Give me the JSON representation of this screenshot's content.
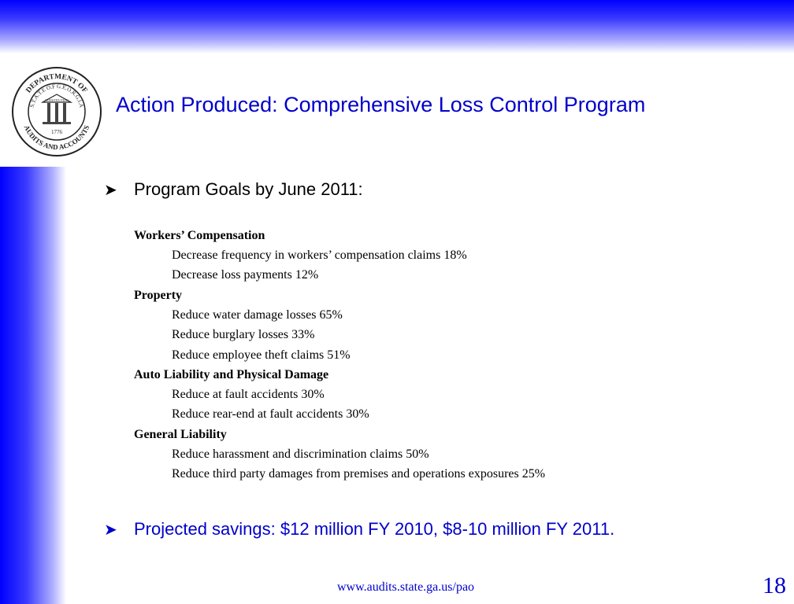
{
  "slide": {
    "title": "Action Produced: Comprehensive Loss Control Program",
    "seal": {
      "text_top": "DEPARTMENT OF",
      "text_state": "S.T.A.T.E O.F G.E.O.R.G.I.A",
      "text_bottom": "AUDITS AND ACCOUNTS",
      "year": "1776",
      "motto_1": "CONSTITUTION",
      "motto_2": "WISDOM",
      "motto_3": "JUSTICE",
      "motto_4": "MODERATION"
    },
    "goals_heading": "Program Goals by June 2011:",
    "categories": [
      {
        "name": "Workers’ Compensation",
        "items": [
          "Decrease  frequency in workers’ compensation claims 18%",
          "Decrease  loss payments 12%"
        ]
      },
      {
        "name": "Property",
        "items": [
          "Reduce water damage losses 65%",
          "Reduce burglary losses 33%",
          "Reduce employee theft claims 51%"
        ]
      },
      {
        "name": "Auto Liability and Physical Damage",
        "items": [
          "Reduce at fault accidents 30%",
          "Reduce rear-end at fault accidents 30%"
        ]
      },
      {
        "name": "General Liability",
        "items": [
          "Reduce harassment and discrimination claims 50%",
          "Reduce third party damages  from premises and operations exposures 25%"
        ]
      }
    ],
    "savings": "Projected savings: $12 million FY 2010, $8-10 million FY 2011.",
    "footer_url": "www.audits.state.ga.us/pao",
    "page_number": "18",
    "bullet_icon": "arrowhead-bullet-icon",
    "colors": {
      "accent": "#0000cc",
      "band": "#0000ff",
      "text": "#000000"
    }
  }
}
